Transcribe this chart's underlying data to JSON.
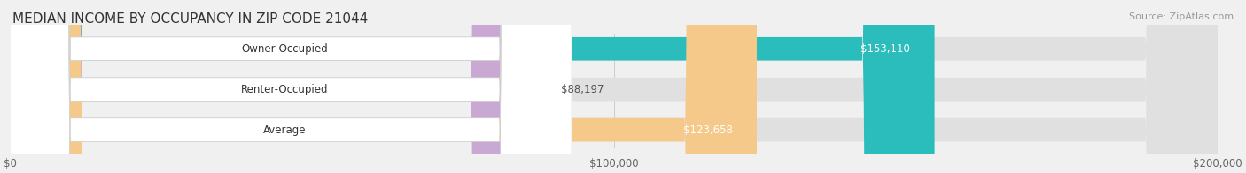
{
  "title": "MEDIAN INCOME BY OCCUPANCY IN ZIP CODE 21044",
  "source": "Source: ZipAtlas.com",
  "categories": [
    "Owner-Occupied",
    "Renter-Occupied",
    "Average"
  ],
  "values": [
    153110,
    88197,
    123658
  ],
  "labels": [
    "$153,110",
    "$88,197",
    "$123,658"
  ],
  "bar_colors": [
    "#2bbcbc",
    "#c9a8d4",
    "#f5c98a"
  ],
  "bar_edge_colors": [
    "#2bbcbc",
    "#c9a8d4",
    "#f5c98a"
  ],
  "xlim": [
    0,
    200000
  ],
  "xticks": [
    0,
    100000,
    200000
  ],
  "xticklabels": [
    "$0",
    "$100,000",
    "$200,000"
  ],
  "background_color": "#f0f0f0",
  "bar_bg_color": "#e8e8e8",
  "title_fontsize": 11,
  "label_fontsize": 8.5,
  "tick_fontsize": 8.5,
  "source_fontsize": 8
}
